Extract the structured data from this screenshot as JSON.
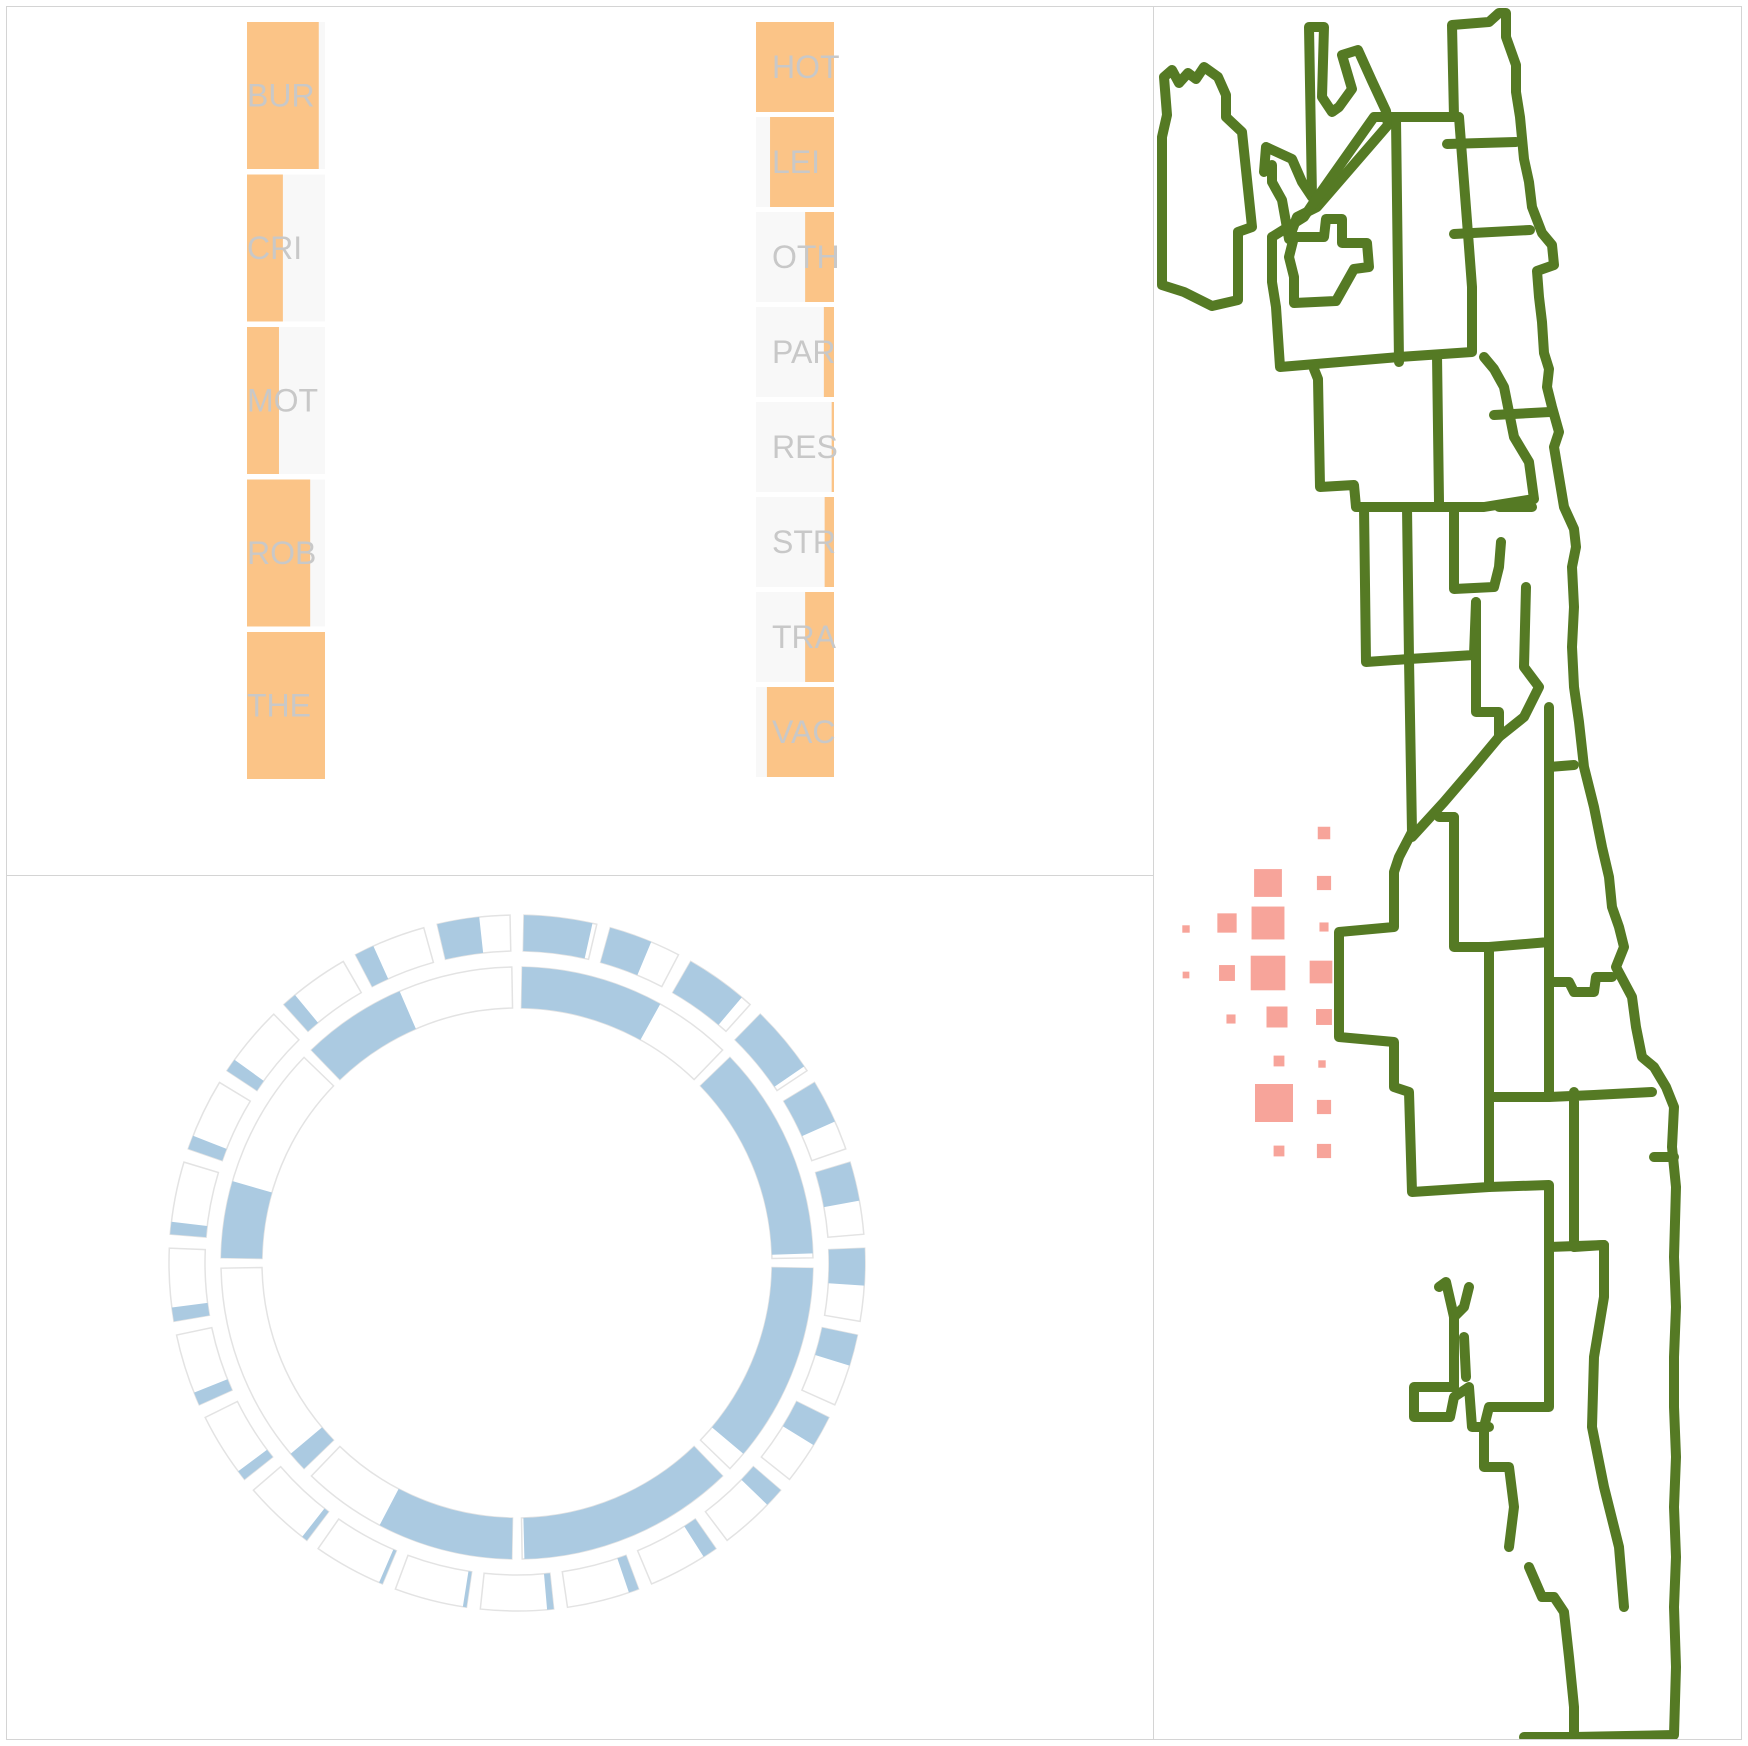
{
  "colors": {
    "bar_fill": "#fbc487",
    "bar_bg": "#f8f8f8",
    "label": "#c8c8c8",
    "arc_fill": "#abcae1",
    "arc_outline": "#e3e3e3",
    "map_stroke": "#557a24",
    "map_marker": "#f7a49a",
    "panel_border": "#d4d4d4"
  },
  "chart_data": [
    {
      "type": "bar",
      "orientation": "horizontal",
      "series": [
        {
          "categories": [
            "BUR",
            "CRI",
            "MOT",
            "ROB",
            "THE"
          ],
          "values": [
            0.92,
            0.46,
            0.41,
            0.81,
            1.0
          ]
        },
        {
          "categories": [
            "HOT",
            "LEI",
            "OTH",
            "PAR",
            "RES",
            "STR",
            "TRA",
            "VAC"
          ],
          "values": [
            1.0,
            0.82,
            0.37,
            0.13,
            0.03,
            0.12,
            0.37,
            0.86
          ]
        }
      ]
    },
    {
      "type": "radial-bar",
      "rings": [
        {
          "name": "",
          "values": [
            0.65,
            0.98,
            0.91,
            0.99,
            0.62,
            0.09,
            0.35,
            0.48
          ]
        },
        {
          "name": "",
          "values": [
            0.94,
            0.59,
            0.85,
            0.93,
            0.6,
            0.54,
            0.51,
            0.43,
            0.43,
            0.27,
            0.2,
            0.14,
            0.09,
            0.05,
            0.05,
            0.08,
            0.14,
            0.18,
            0.19,
            0.17,
            0.19,
            0.18,
            0.2,
            0.27,
            0.58
          ]
        }
      ]
    },
    {
      "type": "map",
      "regions": 34,
      "markers": [
        {
          "size": 1.0
        },
        {
          "size": 0.9
        },
        {
          "size": 0.85
        },
        {
          "size": 0.7
        },
        {
          "size": 0.55
        },
        {
          "size": 0.5
        },
        {
          "size": 0.45
        },
        {
          "size": 0.35
        },
        {
          "size": 0.35
        },
        {
          "size": 0.3
        },
        {
          "size": 0.3
        },
        {
          "size": 0.3
        },
        {
          "size": 0.25
        },
        {
          "size": 0.2
        },
        {
          "size": 0.2
        },
        {
          "size": 0.15
        },
        {
          "size": 0.15
        },
        {
          "size": 0.1
        },
        {
          "size": 0.1
        },
        {
          "size": 0.08
        }
      ]
    }
  ]
}
